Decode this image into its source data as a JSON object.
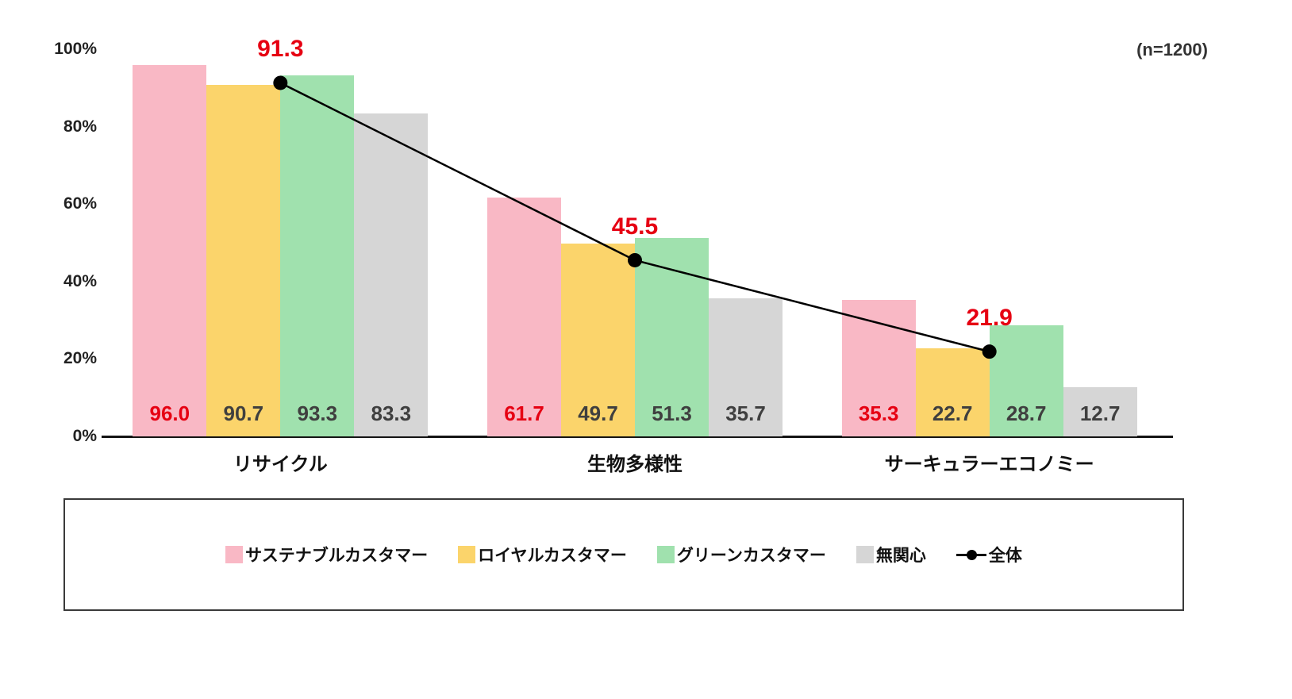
{
  "annotation": {
    "sample_size": "(n=1200)"
  },
  "chart_data": {
    "type": "bar",
    "subtype": "grouped-bars-with-line-overlay",
    "categories": [
      "リサイクル",
      "生物多様性",
      "サーキュラーエコノミー"
    ],
    "series": [
      {
        "name": "サステナブルカスタマー",
        "color": "#F9B8C5",
        "label_color": "#E60012",
        "values": [
          96.0,
          61.7,
          35.3
        ]
      },
      {
        "name": "ロイヤルカスタマー",
        "color": "#FBD46B",
        "label_color": "#3F3F3F",
        "values": [
          90.7,
          49.7,
          22.7
        ]
      },
      {
        "name": "グリーンカスタマー",
        "color": "#A0E1AE",
        "label_color": "#3F3F3F",
        "values": [
          93.3,
          51.3,
          28.7
        ]
      },
      {
        "name": "無関心",
        "color": "#D6D6D6",
        "label_color": "#3F3F3F",
        "values": [
          83.3,
          35.7,
          12.7
        ]
      }
    ],
    "line_series": {
      "name": "全体",
      "color": "#000000",
      "label_color": "#E60012",
      "values": [
        91.3,
        45.5,
        21.9
      ]
    },
    "y_axis": {
      "ticks": [
        "0%",
        "20%",
        "40%",
        "60%",
        "80%",
        "100%"
      ],
      "min": 0,
      "max": 100,
      "grid": false
    },
    "legend_position": "bottom",
    "title": ""
  }
}
